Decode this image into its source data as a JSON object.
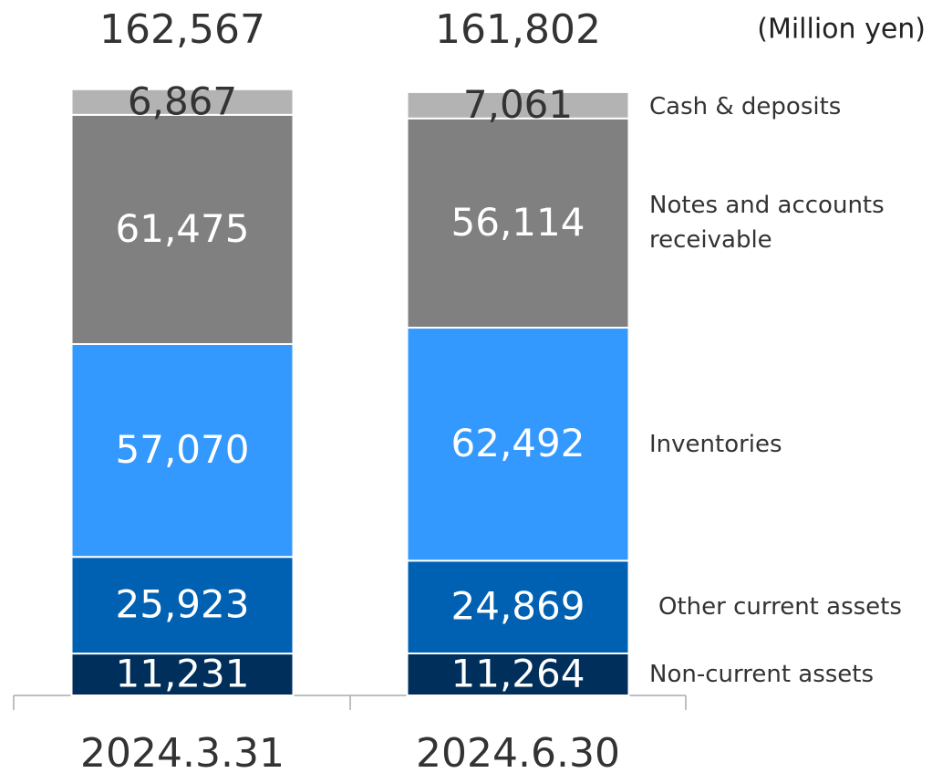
{
  "chart_data": {
    "type": "stacked_bar",
    "unit_label": "(Million yen)",
    "categories": [
      "2024.3.31",
      "2024.6.30"
    ],
    "totals": [
      {
        "value": 162567,
        "label": "162,567"
      },
      {
        "value": 161802,
        "label": "161,802"
      }
    ],
    "ylim": [
      0,
      163000
    ],
    "series": [
      {
        "name": "Non-current assets",
        "color": "#002f5c",
        "values": [
          11231,
          11264
        ],
        "value_labels": [
          "11,231",
          "11,264"
        ]
      },
      {
        "name": "Other current assets",
        "color": "#0061b3",
        "values": [
          25923,
          24869
        ],
        "value_labels": [
          "25,923",
          "24,869"
        ]
      },
      {
        "name": "Inventories",
        "color": "#3399ff",
        "values": [
          57070,
          62492
        ],
        "value_labels": [
          "57,070",
          "62,492"
        ]
      },
      {
        "name": "Notes and accounts receivable",
        "color": "#808080",
        "values": [
          61475,
          56114
        ],
        "value_labels": [
          "61,475",
          "56,114"
        ]
      },
      {
        "name": "Cash & deposits",
        "color": "#b3b3b3",
        "values": [
          6867,
          7061
        ],
        "value_labels": [
          "6,867",
          "7,061"
        ]
      }
    ]
  }
}
